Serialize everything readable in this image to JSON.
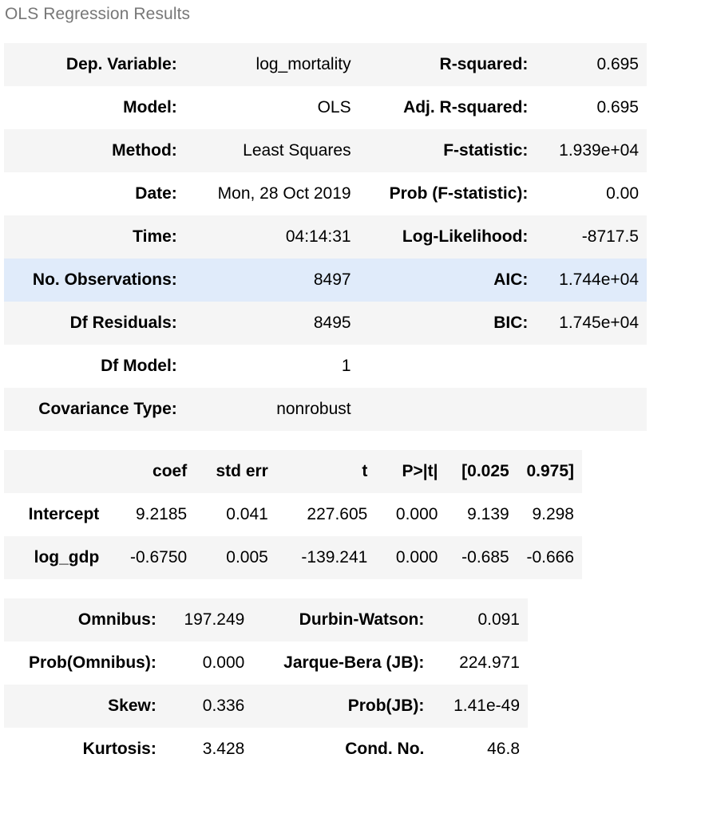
{
  "caption": "OLS Regression Results",
  "summary": {
    "rows": [
      {
        "l1": "Dep. Variable:",
        "v1": "log_mortality",
        "l2": "R-squared:",
        "v2": "0.695"
      },
      {
        "l1": "Model:",
        "v1": "OLS",
        "l2": "Adj. R-squared:",
        "v2": "0.695"
      },
      {
        "l1": "Method:",
        "v1": "Least Squares",
        "l2": "F-statistic:",
        "v2": "1.939e+04"
      },
      {
        "l1": "Date:",
        "v1": "Mon, 28 Oct 2019",
        "l2": "Prob (F-statistic):",
        "v2": "0.00"
      },
      {
        "l1": "Time:",
        "v1": "04:14:31",
        "l2": "Log-Likelihood:",
        "v2": "-8717.5"
      },
      {
        "l1": "No. Observations:",
        "v1": "8497",
        "l2": "AIC:",
        "v2": "1.744e+04"
      },
      {
        "l1": "Df Residuals:",
        "v1": "8495",
        "l2": "BIC:",
        "v2": "1.745e+04"
      },
      {
        "l1": "Df Model:",
        "v1": "1",
        "l2": "",
        "v2": ""
      },
      {
        "l1": "Covariance Type:",
        "v1": "nonrobust",
        "l2": "",
        "v2": ""
      }
    ]
  },
  "coef": {
    "headers": [
      "",
      "coef",
      "std err",
      "t",
      "P>|t|",
      "[0.025",
      "0.975]"
    ],
    "rows": [
      [
        "Intercept",
        "9.2185",
        "0.041",
        "227.605",
        "0.000",
        "9.139",
        "9.298"
      ],
      [
        "log_gdp",
        "-0.6750",
        "0.005",
        "-139.241",
        "0.000",
        "-0.685",
        "-0.666"
      ]
    ]
  },
  "diag": {
    "rows": [
      {
        "l1": "Omnibus:",
        "v1": "197.249",
        "l2": "Durbin-Watson:",
        "v2": "0.091"
      },
      {
        "l1": "Prob(Omnibus):",
        "v1": "0.000",
        "l2": "Jarque-Bera (JB):",
        "v2": "224.971"
      },
      {
        "l1": "Skew:",
        "v1": "0.336",
        "l2": "Prob(JB):",
        "v2": "1.41e-49"
      },
      {
        "l1": "Kurtosis:",
        "v1": "3.428",
        "l2": "Cond. No.",
        "v2": "46.8"
      }
    ]
  },
  "colors": {
    "row_stripe": "#f5f5f5",
    "row_highlight": "#e0ebfa",
    "caption": "#777777"
  }
}
